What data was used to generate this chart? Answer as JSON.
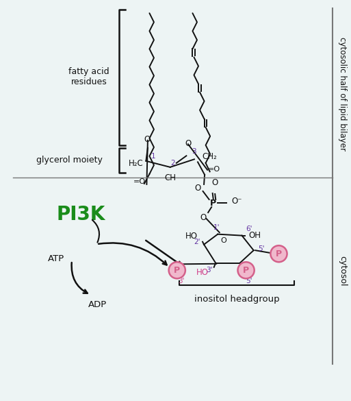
{
  "bg_color": "#edf4f4",
  "fatty_acid_label": "fatty acid\nresidues",
  "glycerol_label": "glycerol moiety",
  "cytosolic_bilayer_label": "cytosolic half of lipid bilayer",
  "cytosol_label": "cytosol",
  "pi3k_label": "PI3K",
  "pi3k_color": "#1a8c1a",
  "atp_label": "ATP",
  "adp_label": "ADP",
  "inositol_label": "inositol headgroup",
  "p_color": "#d4608a",
  "p_bg_color": "#f0b8cc",
  "purple_color": "#6030a0",
  "pink_label_color": "#d0408a",
  "black_color": "#111111",
  "gray_color": "#777777"
}
